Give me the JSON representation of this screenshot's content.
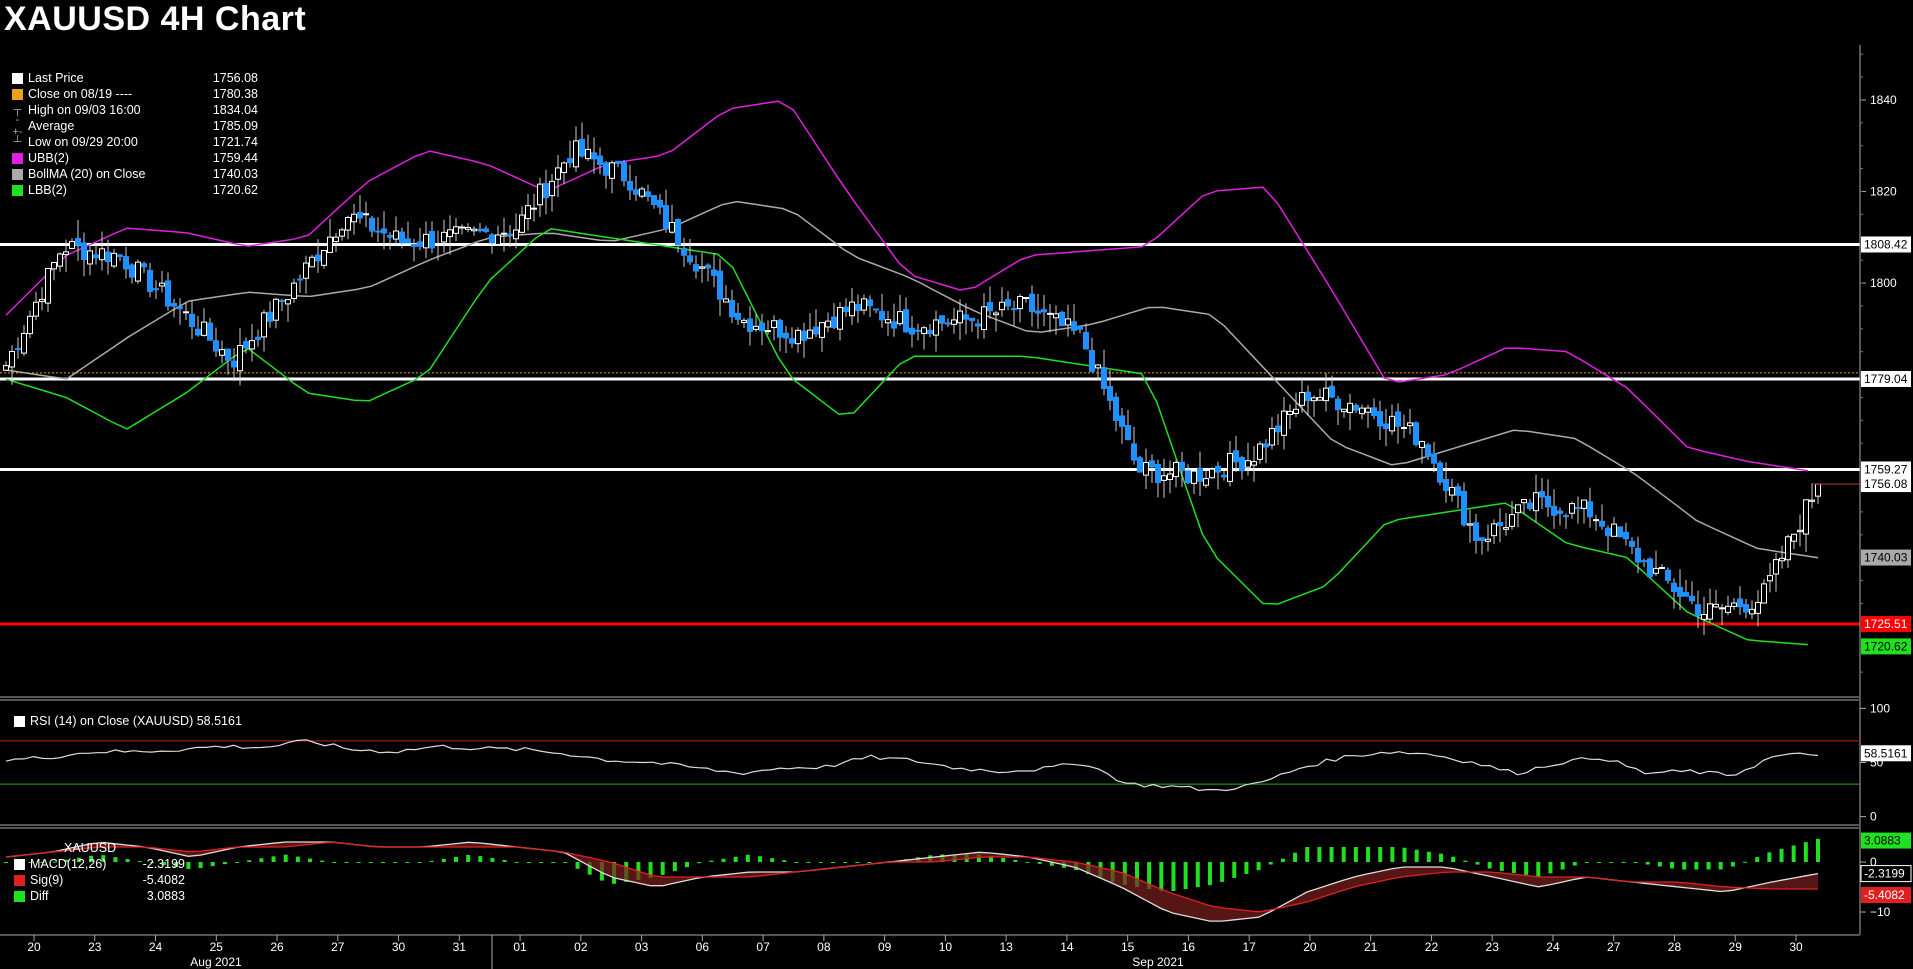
{
  "title": "XAUUSD 4H Chart",
  "legend": [
    {
      "label": "Last Price",
      "value": "1756.08",
      "color": "#ffffff",
      "kind": "swatch"
    },
    {
      "label": "Close on 08/19 ----",
      "value": "1780.38",
      "color": "#f0a020",
      "kind": "swatch"
    },
    {
      "label": "High on 09/03 16:00",
      "value": "1834.04",
      "color": "#aaaaaa",
      "kind": "high"
    },
    {
      "label": "Average",
      "value": "1785.09",
      "color": "#aaaaaa",
      "kind": "avg"
    },
    {
      "label": "Low on 09/29 20:00",
      "value": "1721.74",
      "color": "#aaaaaa",
      "kind": "low"
    },
    {
      "label": "UBB(2)",
      "value": "1759.44",
      "color": "#e020e0",
      "kind": "swatch"
    },
    {
      "label": "BollMA (20)  on Close",
      "value": "1740.03",
      "color": "#aaaaaa",
      "kind": "swatch"
    },
    {
      "label": "LBB(2)",
      "value": "1720.62",
      "color": "#20e020",
      "kind": "swatch"
    }
  ],
  "rsi_legend": {
    "label": "RSI (14)  on Close (XAUUSD) 58.5161",
    "color": "#ffffff"
  },
  "macd_legend": {
    "title": "XAUUSD",
    "rows": [
      {
        "label": "MACD(12,26)",
        "value": "-2.3199",
        "color": "#ffffff"
      },
      {
        "label": "Sig(9)",
        "value": "-5.4082",
        "color": "#e02020"
      },
      {
        "label": "Diff",
        "value": "3.0883",
        "color": "#20e020"
      }
    ]
  },
  "colors": {
    "up": "#ffffff",
    "down": "#1e90ff",
    "ubb": "#e020e0",
    "lbb": "#20e020",
    "ma": "#aaaaaa",
    "support": "#ff0000",
    "level": "#ffffff",
    "close_ref": "#f0a020"
  },
  "chart_data": {
    "type": "candlestick",
    "title": "XAUUSD 4H Chart",
    "ylim": [
      1710,
      1852
    ],
    "y_ticks": [
      1800,
      1820,
      1840
    ],
    "x_day_labels": [
      "20",
      "23",
      "24",
      "25",
      "26",
      "27",
      "30",
      "31",
      "01",
      "02",
      "03",
      "06",
      "07",
      "08",
      "09",
      "10",
      "13",
      "14",
      "15",
      "16",
      "17",
      "20",
      "21",
      "22",
      "23",
      "24",
      "27",
      "28",
      "29",
      "30"
    ],
    "x_month_labels": [
      "Aug 2021",
      "Sep 2021"
    ],
    "horizontal_levels": [
      {
        "value": 1808.42,
        "label": "1808.42",
        "color": "#ffffff"
      },
      {
        "value": 1779.04,
        "label": "1779.04",
        "color": "#ffffff"
      },
      {
        "value": 1759.27,
        "label": "1759.27",
        "color": "#ffffff"
      },
      {
        "value": 1725.51,
        "label": "1725.51",
        "color": "#ff0000"
      }
    ],
    "reference_close": {
      "value": 1780.38,
      "label": "Close on 08/19"
    },
    "right_axis_tags": [
      {
        "value": 1756.08,
        "label": "1756.08",
        "bg": "#ffffff",
        "fg": "#000000"
      },
      {
        "value": 1740.03,
        "label": "1740.03",
        "bg": "#aaaaaa",
        "fg": "#000000"
      },
      {
        "value": 1720.62,
        "label": "1720.62",
        "bg": "#20e020",
        "fg": "#000000"
      }
    ],
    "day_close_anchors": [
      1782,
      1808,
      1806,
      1795,
      1783,
      1798,
      1815,
      1809,
      1810,
      1812,
      1829,
      1823,
      1808,
      1792,
      1789,
      1795,
      1791,
      1792,
      1795,
      1788,
      1759,
      1758,
      1762,
      1776,
      1773,
      1766,
      1744,
      1752,
      1750,
      1738,
      1728,
      1731,
      1756
    ],
    "ubb_anchors": [
      1793,
      1806,
      1812,
      1811,
      1808,
      1810,
      1822,
      1829,
      1826,
      1820,
      1826,
      1828,
      1838,
      1840,
      1820,
      1802,
      1798,
      1806,
      1807,
      1808,
      1820,
      1821,
      1800,
      1778,
      1780,
      1786,
      1785,
      1777,
      1764,
      1761,
      1759
    ],
    "ma_anchors": [
      1781,
      1779,
      1788,
      1796,
      1798,
      1797,
      1799,
      1805,
      1810,
      1811,
      1809,
      1812,
      1818,
      1816,
      1806,
      1801,
      1794,
      1789,
      1791,
      1795,
      1793,
      1779,
      1765,
      1760,
      1764,
      1768,
      1766,
      1758,
      1748,
      1742,
      1740
    ],
    "lbb_anchors": [
      1779,
      1775,
      1768,
      1776,
      1786,
      1776,
      1774,
      1780,
      1800,
      1812,
      1810,
      1808,
      1806,
      1780,
      1770,
      1784,
      1784,
      1784,
      1782,
      1780,
      1742,
      1729,
      1734,
      1748,
      1750,
      1752,
      1743,
      1740,
      1728,
      1722,
      1721
    ],
    "rsi": {
      "ylim": [
        -5,
        105
      ],
      "ticks": [
        0,
        50,
        100
      ],
      "overbought": 70,
      "oversold": 30,
      "last": 58.5161,
      "anchors": [
        52,
        55,
        60,
        60,
        62,
        65,
        64,
        70,
        62,
        60,
        65,
        63,
        62,
        58,
        52,
        50,
        45,
        40,
        45,
        46,
        55,
        52,
        45,
        42,
        44,
        50,
        30,
        28,
        24,
        30,
        45,
        55,
        60,
        58,
        50,
        40,
        50,
        55,
        40,
        42,
        38,
        56,
        58
      ]
    },
    "macd": {
      "ylim": [
        -14,
        6
      ],
      "ticks": [
        0,
        -10
      ],
      "macd_last": -2.3199,
      "sig_last": -5.4082,
      "diff_last": 3.0883,
      "macd_anchors": [
        1,
        2,
        4,
        3,
        1,
        3,
        4,
        4,
        3,
        3,
        4,
        3,
        2,
        -3,
        -5,
        -3,
        -2,
        -2,
        -1,
        0,
        1,
        2,
        1,
        -1,
        -5,
        -10,
        -12,
        -11,
        -6,
        -3,
        -1,
        -1,
        -3,
        -5,
        -3,
        -4,
        -5,
        -6,
        -4,
        -2.3199
      ],
      "sig_anchors": [
        1,
        2,
        3,
        3,
        2,
        3,
        3,
        4,
        3,
        3,
        3,
        3,
        2,
        0,
        -3,
        -3,
        -3,
        -2,
        -1,
        0,
        0,
        1,
        1,
        0,
        -2,
        -6,
        -9,
        -10,
        -8,
        -5,
        -3,
        -2,
        -2,
        -3,
        -3,
        -4,
        -4,
        -5,
        -5.4,
        -5.4082
      ]
    }
  }
}
